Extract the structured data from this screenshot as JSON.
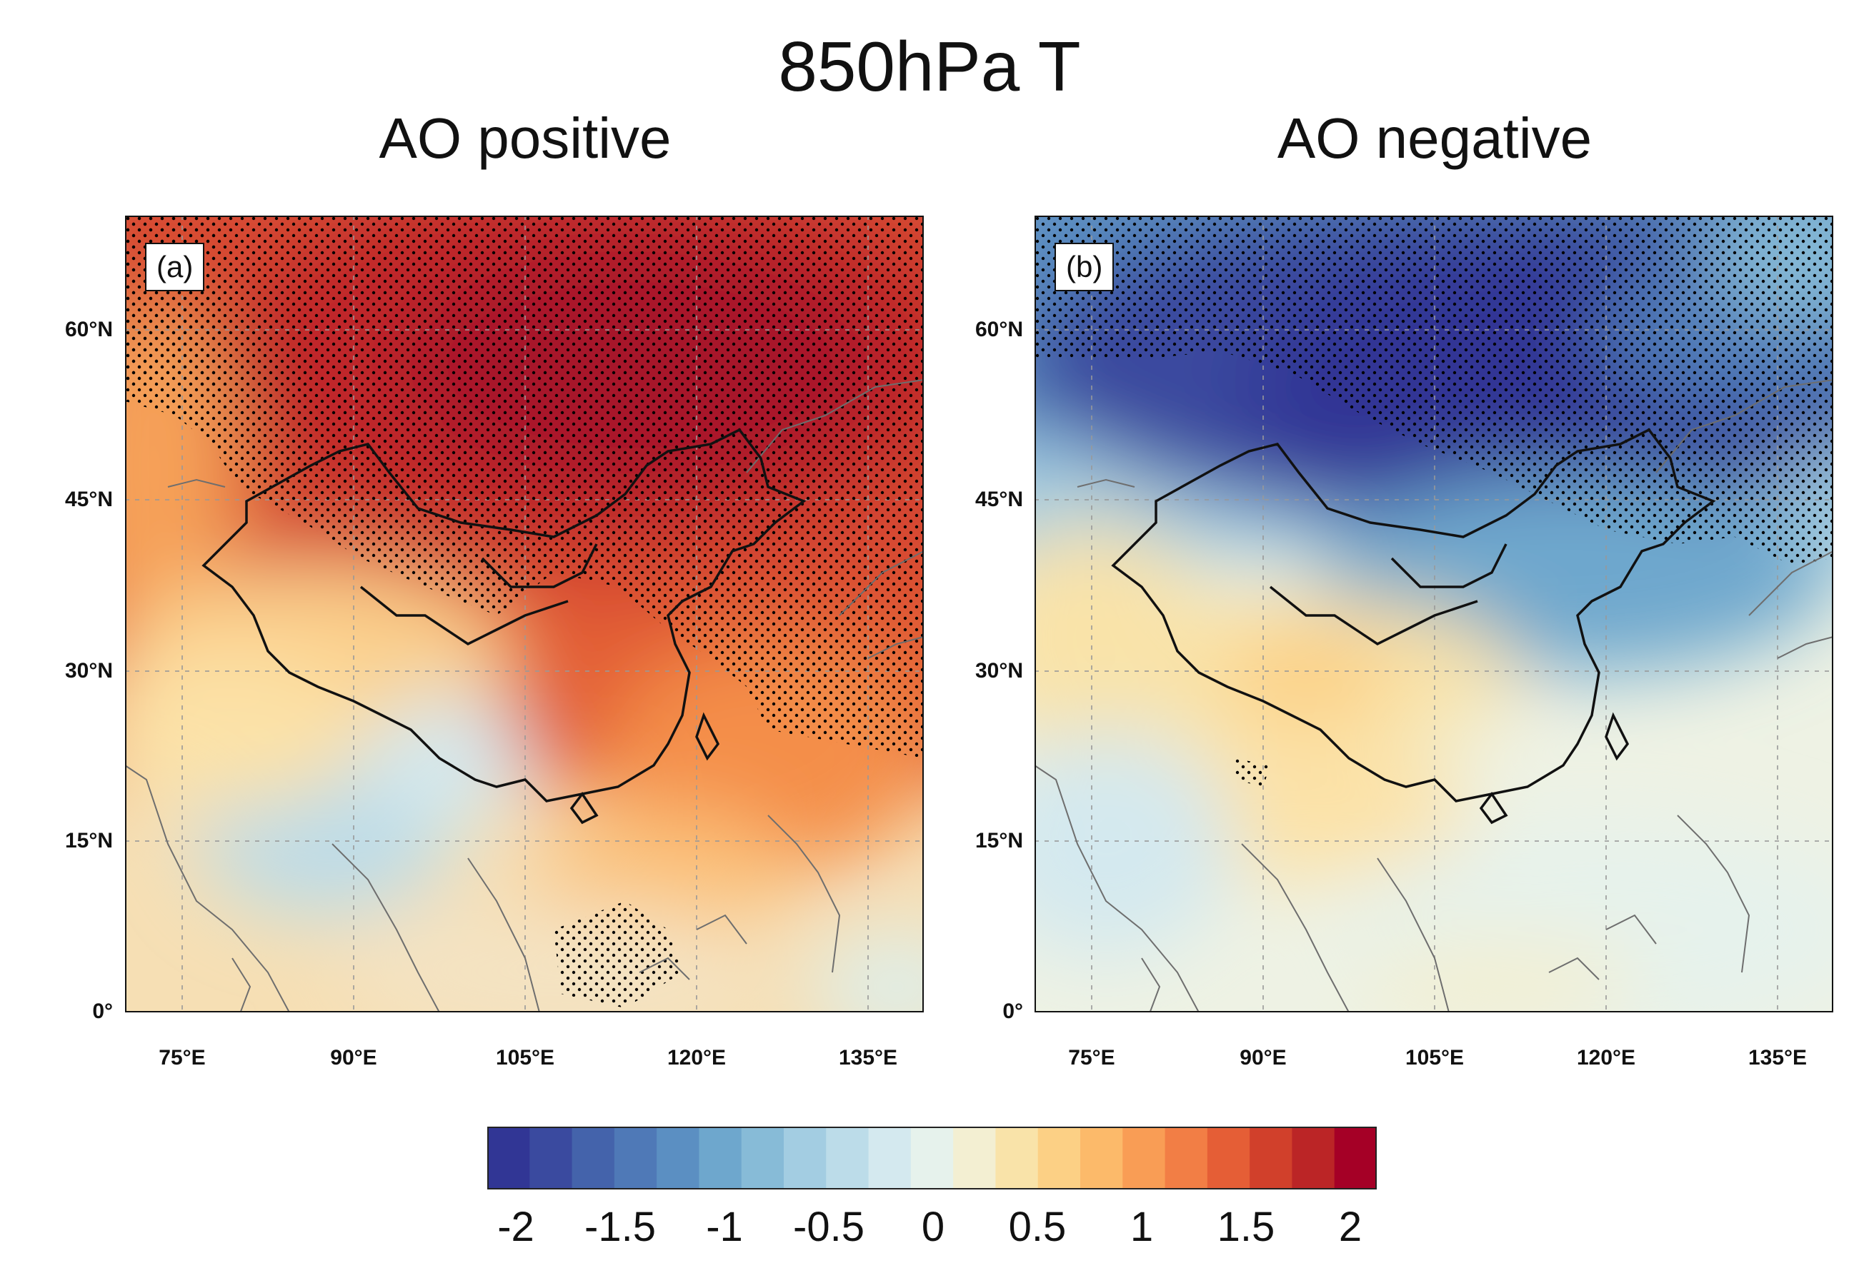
{
  "figure": {
    "title": "850hPa T",
    "colorbar": {
      "ticks": [
        "-2",
        "-1.5",
        "-1",
        "-0.5",
        "0",
        "0.5",
        "1",
        "1.5",
        "2"
      ],
      "range": [
        -2,
        2
      ],
      "colors_low_to_high": [
        "#313695",
        "#3a4a9f",
        "#4463ab",
        "#4f79b7",
        "#5b8fc2",
        "#6ea7cd",
        "#87bbd7",
        "#a3cde2",
        "#bcdce9",
        "#d4e9ef",
        "#e6f2ec",
        "#f3efd2",
        "#f9e3a9",
        "#fcd085",
        "#fcba6a",
        "#f99d55",
        "#f27e45",
        "#e55e36",
        "#d1402b",
        "#bb2526",
        "#a50026"
      ]
    },
    "axes": {
      "lat_ticks": [
        "60°N",
        "45°N",
        "30°N",
        "15°N",
        "0°"
      ],
      "lon_ticks": [
        "75°E",
        "90°E",
        "105°E",
        "120°E",
        "135°E"
      ],
      "lat_range": [
        0,
        70
      ],
      "lon_range": [
        70,
        140
      ]
    },
    "panels": [
      {
        "label": "(a)",
        "title": "AO positive",
        "pattern": "positive"
      },
      {
        "label": "(b)",
        "title": "AO negative",
        "pattern": "negative"
      }
    ]
  }
}
